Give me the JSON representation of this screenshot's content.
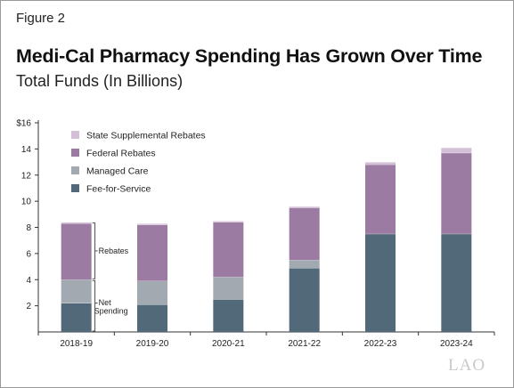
{
  "figure_label": "Figure 2",
  "logo_text": "LAO",
  "colors": {
    "fee_for_service": "#526979",
    "managed_care": "#a2a9b1",
    "federal_rebates": "#9c7ba3",
    "state_supplemental_rebates": "#d3bfd6",
    "axis": "#333333"
  },
  "chart_data": {
    "type": "bar",
    "stacked": true,
    "title": "Medi-Cal Pharmacy Spending Has Grown Over Time",
    "subtitle": "Total Funds (In Billions)",
    "categories": [
      "2018-19",
      "2019-20",
      "2020-21",
      "2021-22",
      "2022-23",
      "2023-24"
    ],
    "ylim": [
      0,
      16
    ],
    "yticks": [
      2,
      4,
      6,
      8,
      10,
      12,
      14,
      16
    ],
    "ytick_labels": [
      "2",
      "4",
      "6",
      "8",
      "10",
      "12",
      "14",
      "$16"
    ],
    "grid": false,
    "legend_position": "top-left",
    "series": [
      {
        "name": "Fee-for-Service",
        "values": [
          2.2,
          2.1,
          2.5,
          4.9,
          7.5,
          7.5
        ]
      },
      {
        "name": "Managed Care",
        "values": [
          1.8,
          1.8,
          1.7,
          0.6,
          0.0,
          0.0
        ]
      },
      {
        "name": "Federal Rebates",
        "values": [
          4.3,
          4.3,
          4.2,
          4.0,
          5.3,
          6.2
        ]
      },
      {
        "name": "State Supplemental Rebates",
        "values": [
          0.1,
          0.1,
          0.1,
          0.1,
          0.2,
          0.4
        ]
      }
    ],
    "annotations": {
      "rebates": "Rebates",
      "net_spending_line1": "Net",
      "net_spending_line2": "Spending"
    }
  }
}
